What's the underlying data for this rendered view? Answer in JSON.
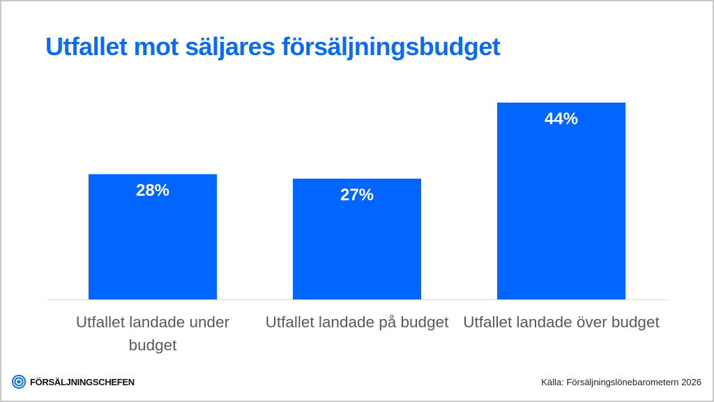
{
  "title": "Utfallet mot säljares försäljningsbudget",
  "colors": {
    "accent": "#0a6cf5",
    "bar": "#0066ff",
    "bar_label": "#ffffff",
    "category_text": "#595959",
    "axis": "#d9d9d9"
  },
  "chart_data": {
    "type": "bar",
    "title": "Utfallet mot säljares försäljningsbudget",
    "categories": [
      "Utfallet landade under budget",
      "Utfallet landade på budget",
      "Utfallet landade över budget"
    ],
    "values": [
      28,
      27,
      44
    ],
    "data_labels": [
      "28%",
      "27%",
      "44%"
    ],
    "unit": "%",
    "ylim": [
      0,
      50
    ],
    "grid": false,
    "legend": "none"
  },
  "footer": {
    "logo_text": "FÖRSÄLJNINGSCHEFEN",
    "source": "Källa: Försäljningslönebarometern 2026"
  }
}
